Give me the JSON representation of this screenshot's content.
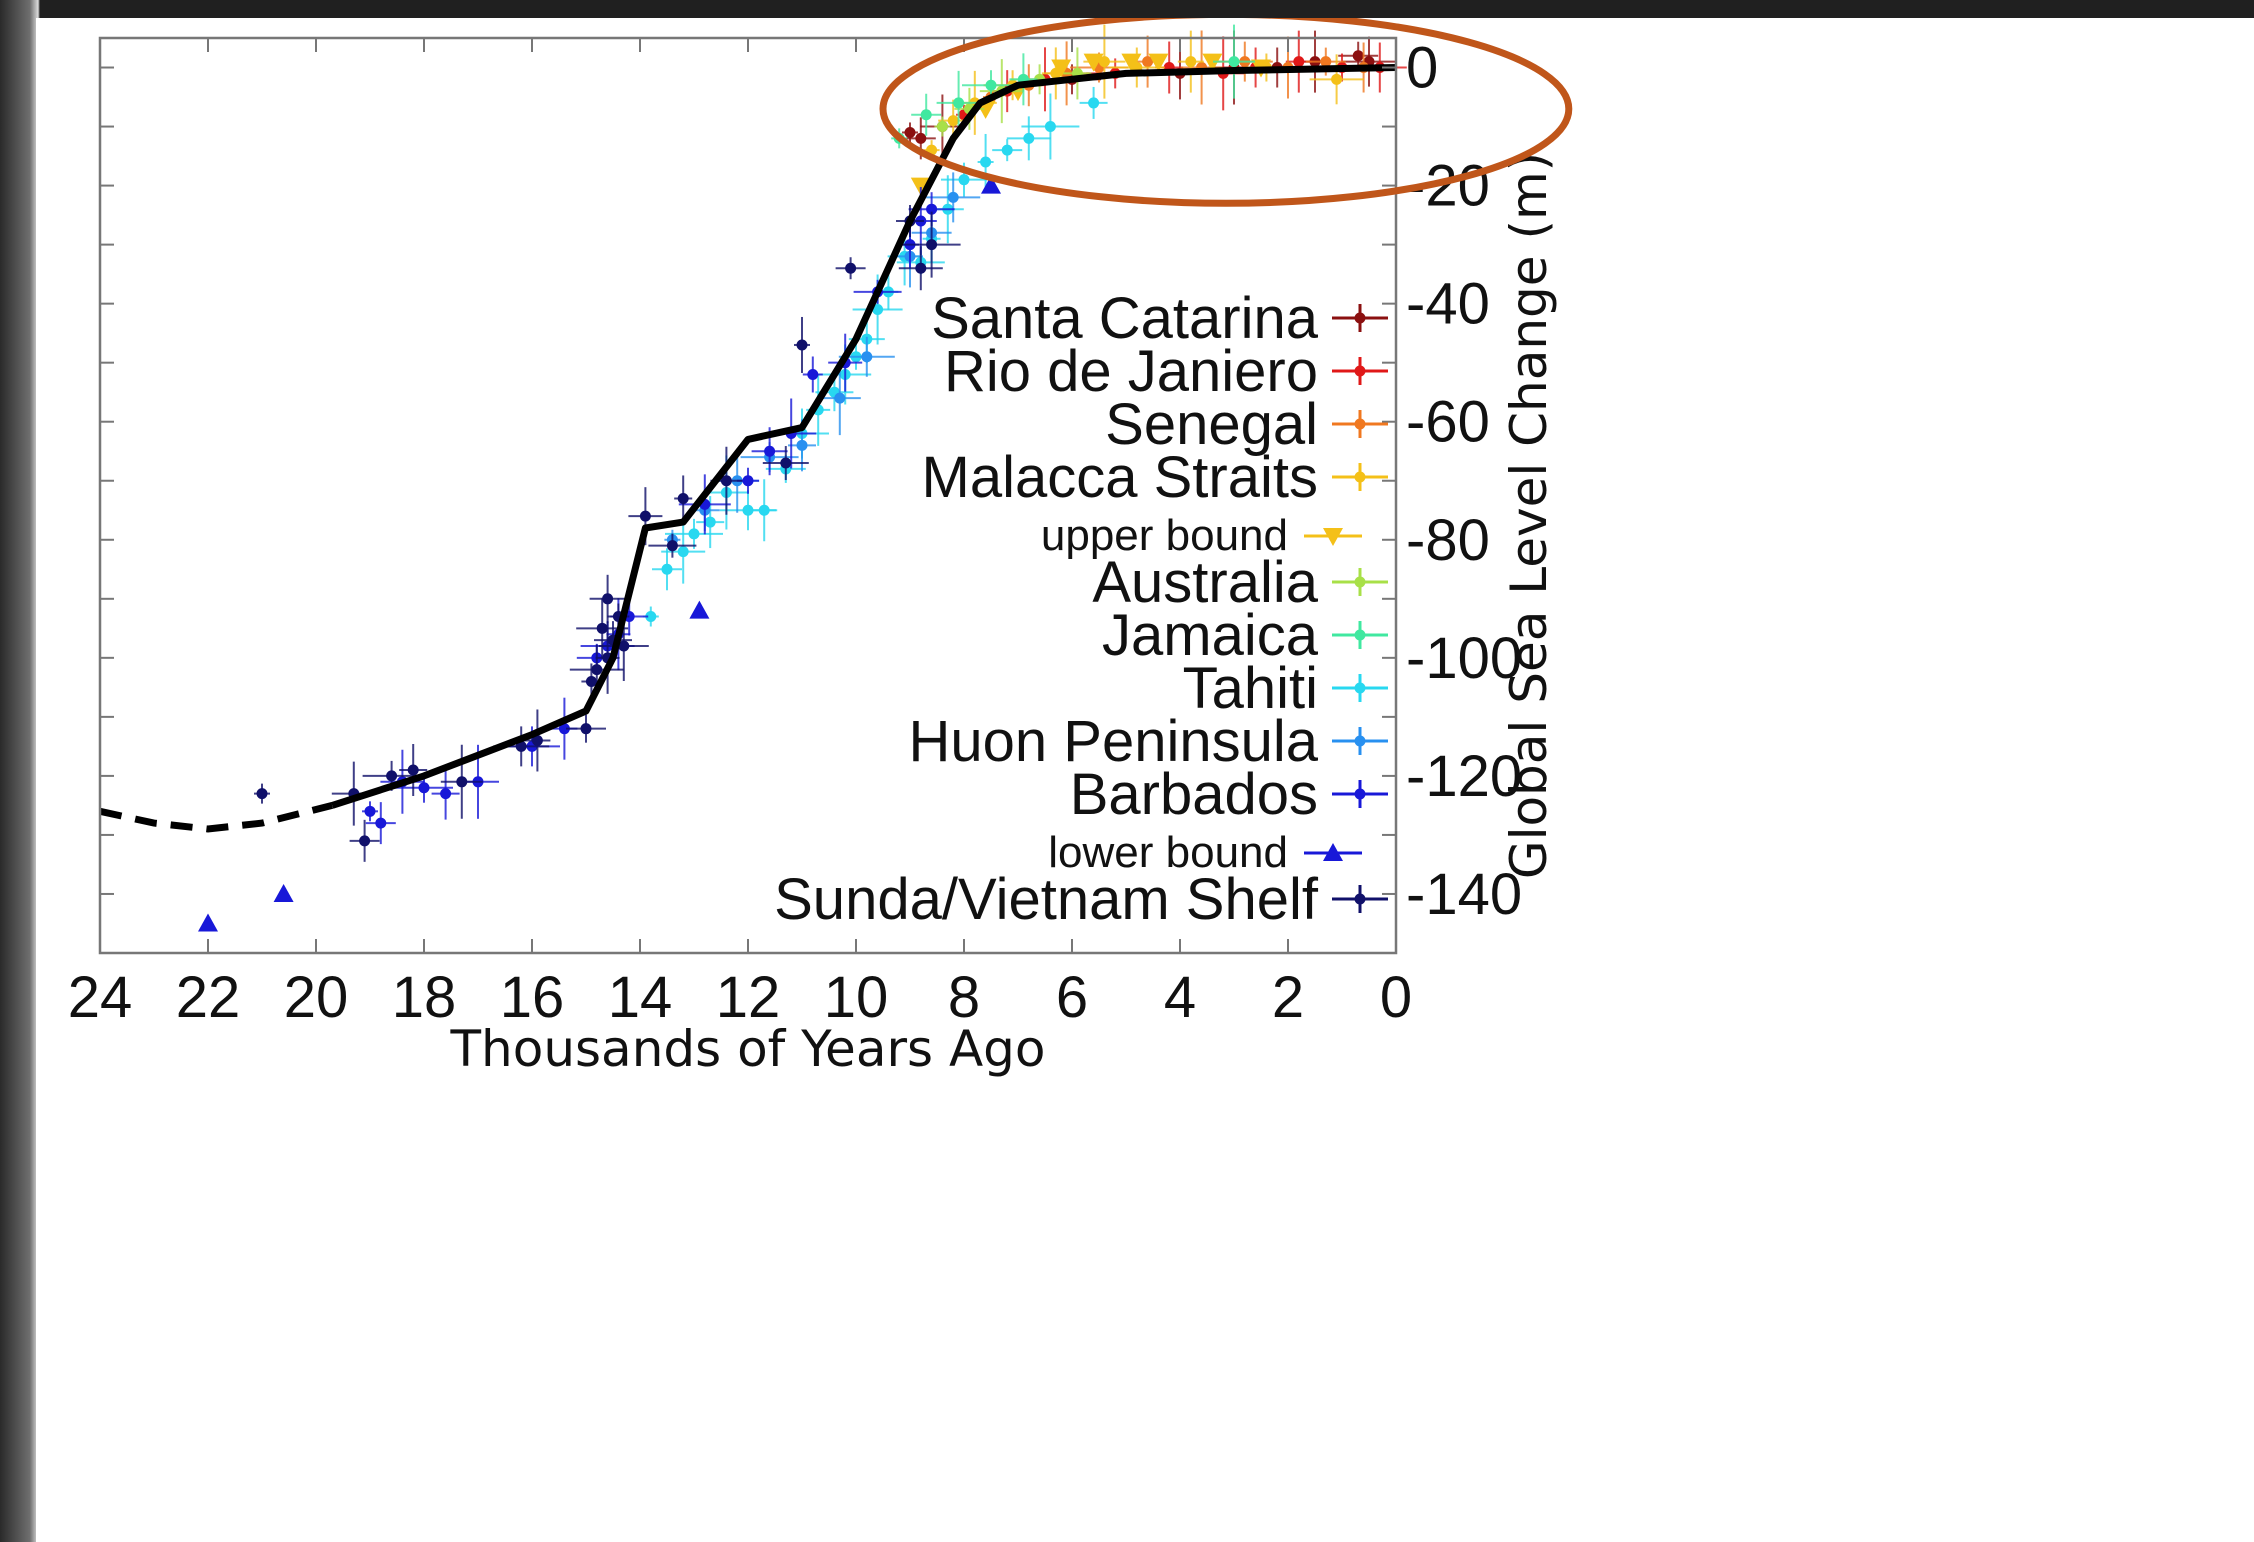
{
  "chart_data": {
    "type": "scatter",
    "title": "",
    "xlabel": "Thousands of Years Ago",
    "ylabel": "Global Sea Level Change (m)",
    "xlim": [
      24,
      0
    ],
    "ylim": [
      -150,
      5
    ],
    "x_ticks": [
      24,
      22,
      20,
      18,
      16,
      14,
      12,
      10,
      8,
      6,
      4,
      2,
      0
    ],
    "y_tick_labels": [
      0,
      -20,
      -40,
      -60,
      -80,
      -100,
      -120,
      -140
    ],
    "grid": false,
    "legend_position": "right-center",
    "highlight": {
      "type": "ellipse",
      "color": "#c0561a",
      "x_range": [
        9.5,
        -3.2
      ],
      "y_range": [
        -23,
        9
      ]
    },
    "legend": [
      {
        "label": "Santa Catarina",
        "color": "#8b1010",
        "marker": "circle-cross"
      },
      {
        "label": "Rio de Janiero",
        "color": "#e01818",
        "marker": "circle-cross"
      },
      {
        "label": "Senegal",
        "color": "#f07820",
        "marker": "circle-cross"
      },
      {
        "label": "Malacca Straits",
        "color": "#f4c018",
        "marker": "circle-cross"
      },
      {
        "label": "upper bound",
        "color": "#f4c018",
        "marker": "triangle-down",
        "small": true
      },
      {
        "label": "Australia",
        "color": "#a8e048",
        "marker": "circle-cross"
      },
      {
        "label": "Jamaica",
        "color": "#40e8a0",
        "marker": "circle-cross"
      },
      {
        "label": "Tahiti",
        "color": "#28d8f0",
        "marker": "circle-cross"
      },
      {
        "label": "Huon Peninsula",
        "color": "#2890f0",
        "marker": "circle-cross"
      },
      {
        "label": "Barbados",
        "color": "#1818d8",
        "marker": "circle-cross"
      },
      {
        "label": "lower bound",
        "color": "#1818d8",
        "marker": "triangle-up",
        "small": true
      },
      {
        "label": "Sunda/Vietnam Shelf",
        "color": "#10106a",
        "marker": "circle-cross"
      }
    ],
    "trend_line": {
      "color": "#000000",
      "dashed": [
        [
          24,
          -126
        ],
        [
          23,
          -128
        ],
        [
          22,
          -129
        ],
        [
          21,
          -128
        ],
        [
          19.7,
          -125
        ]
      ],
      "solid": [
        [
          19.7,
          -125
        ],
        [
          18,
          -120
        ],
        [
          16,
          -113
        ],
        [
          15,
          -109
        ],
        [
          14.5,
          -100
        ],
        [
          13.9,
          -78
        ],
        [
          13.2,
          -77
        ],
        [
          12,
          -63
        ],
        [
          11,
          -61
        ],
        [
          10,
          -46
        ],
        [
          9,
          -26
        ],
        [
          8.2,
          -12
        ],
        [
          7.7,
          -6
        ],
        [
          7,
          -3
        ],
        [
          5,
          -1
        ],
        [
          3,
          -0.5
        ],
        [
          0,
          0
        ]
      ]
    },
    "series": [
      {
        "name": "Santa Catarina",
        "points": [
          [
            9.0,
            -11
          ],
          [
            8.8,
            -12
          ],
          [
            8.4,
            -10
          ],
          [
            6.0,
            -2
          ],
          [
            4.0,
            -1
          ],
          [
            3.0,
            0
          ],
          [
            2.2,
            0
          ],
          [
            1.5,
            1
          ],
          [
            0.7,
            2
          ],
          [
            0.5,
            1
          ]
        ]
      },
      {
        "name": "Rio de Janiero",
        "points": [
          [
            8.0,
            -8
          ],
          [
            7.2,
            -4
          ],
          [
            6.5,
            -2
          ],
          [
            5.2,
            -1
          ],
          [
            4.2,
            0
          ],
          [
            3.2,
            -1
          ],
          [
            2.6,
            0
          ],
          [
            1.8,
            1
          ],
          [
            1.0,
            0
          ],
          [
            0.3,
            0
          ]
        ]
      },
      {
        "name": "Senegal",
        "points": [
          [
            7.5,
            -5
          ],
          [
            6.8,
            -3
          ],
          [
            6.1,
            -1
          ],
          [
            5.5,
            0
          ],
          [
            4.6,
            1
          ],
          [
            3.6,
            0
          ],
          [
            2.8,
            1
          ],
          [
            2.0,
            0
          ],
          [
            1.3,
            1
          ],
          [
            0.6,
            0
          ]
        ]
      },
      {
        "name": "Malacca Straits",
        "points": [
          [
            8.6,
            -14
          ],
          [
            8.2,
            -9
          ],
          [
            7.8,
            -6
          ],
          [
            7.1,
            -3
          ],
          [
            6.3,
            -1
          ],
          [
            5.4,
            1
          ],
          [
            4.8,
            0
          ],
          [
            3.8,
            1
          ],
          [
            2.4,
            0
          ],
          [
            1.1,
            -2
          ]
        ]
      },
      {
        "name": "upper bound",
        "points": [
          [
            8.8,
            -20
          ],
          [
            7.6,
            -7
          ],
          [
            7.0,
            -4
          ],
          [
            6.2,
            0
          ],
          [
            5.6,
            1
          ],
          [
            4.9,
            1
          ],
          [
            4.4,
            1
          ],
          [
            3.4,
            1
          ],
          [
            2.5,
            0
          ]
        ]
      },
      {
        "name": "Australia",
        "points": [
          [
            8.4,
            -10
          ],
          [
            7.9,
            -7
          ],
          [
            7.3,
            -4
          ],
          [
            6.6,
            -2
          ],
          [
            5.9,
            -1
          ]
        ]
      },
      {
        "name": "Jamaica",
        "points": [
          [
            9.2,
            -12
          ],
          [
            8.7,
            -8
          ],
          [
            8.1,
            -6
          ],
          [
            7.5,
            -3
          ],
          [
            6.9,
            -2
          ],
          [
            3.0,
            1
          ]
        ]
      },
      {
        "name": "Tahiti",
        "points": [
          [
            13.8,
            -93
          ],
          [
            13.5,
            -85
          ],
          [
            13.2,
            -82
          ],
          [
            13.0,
            -79
          ],
          [
            12.7,
            -77
          ],
          [
            12.4,
            -72
          ],
          [
            12.0,
            -75
          ],
          [
            11.7,
            -75
          ],
          [
            11.3,
            -68
          ],
          [
            11.0,
            -62
          ],
          [
            10.7,
            -58
          ],
          [
            10.4,
            -55
          ],
          [
            10.2,
            -52
          ],
          [
            10.0,
            -49
          ],
          [
            9.8,
            -46
          ],
          [
            9.6,
            -41
          ],
          [
            9.4,
            -38
          ],
          [
            9.1,
            -32
          ],
          [
            8.8,
            -33
          ],
          [
            8.6,
            -29
          ],
          [
            8.3,
            -24
          ],
          [
            8.0,
            -19
          ],
          [
            7.6,
            -16
          ],
          [
            7.2,
            -14
          ],
          [
            6.8,
            -12
          ],
          [
            6.4,
            -10
          ],
          [
            5.6,
            -6
          ]
        ]
      },
      {
        "name": "Huon Peninsula",
        "points": [
          [
            13.4,
            -80
          ],
          [
            12.8,
            -75
          ],
          [
            12.2,
            -70
          ],
          [
            11.6,
            -66
          ],
          [
            11.0,
            -64
          ],
          [
            10.3,
            -56
          ],
          [
            9.8,
            -49
          ],
          [
            9.0,
            -32
          ],
          [
            8.6,
            -28
          ],
          [
            8.2,
            -22
          ]
        ]
      },
      {
        "name": "Barbados",
        "points": [
          [
            19.0,
            -126
          ],
          [
            18.8,
            -128
          ],
          [
            18.4,
            -121
          ],
          [
            18.0,
            -122
          ],
          [
            17.6,
            -123
          ],
          [
            17.0,
            -121
          ],
          [
            16.0,
            -115
          ],
          [
            15.4,
            -112
          ],
          [
            14.8,
            -100
          ],
          [
            14.6,
            -98
          ],
          [
            14.4,
            -96
          ],
          [
            14.2,
            -93
          ],
          [
            12.8,
            -74
          ],
          [
            12.0,
            -70
          ],
          [
            11.6,
            -65
          ],
          [
            11.2,
            -62
          ],
          [
            10.8,
            -52
          ],
          [
            10.2,
            -50
          ],
          [
            9.6,
            -38
          ],
          [
            9.0,
            -30
          ],
          [
            8.8,
            -26
          ],
          [
            8.6,
            -24
          ]
        ]
      },
      {
        "name": "lower bound",
        "points": [
          [
            22.0,
            -145
          ],
          [
            20.6,
            -140
          ],
          [
            12.9,
            -92
          ],
          [
            7.5,
            -20
          ]
        ]
      },
      {
        "name": "Sunda/Vietnam Shelf",
        "points": [
          [
            21.0,
            -123
          ],
          [
            19.1,
            -131
          ],
          [
            19.3,
            -123
          ],
          [
            18.6,
            -120
          ],
          [
            18.2,
            -119
          ],
          [
            17.3,
            -121
          ],
          [
            16.2,
            -115
          ],
          [
            15.9,
            -114
          ],
          [
            15.0,
            -112
          ],
          [
            14.8,
            -102
          ],
          [
            14.6,
            -100
          ],
          [
            14.5,
            -97
          ],
          [
            14.7,
            -95
          ],
          [
            14.4,
            -93
          ],
          [
            14.6,
            -90
          ],
          [
            14.3,
            -98
          ],
          [
            14.9,
            -104
          ],
          [
            13.9,
            -76
          ],
          [
            13.4,
            -81
          ],
          [
            13.2,
            -73
          ],
          [
            12.4,
            -70
          ],
          [
            11.3,
            -67
          ],
          [
            11.0,
            -47
          ],
          [
            10.1,
            -34
          ],
          [
            8.8,
            -34
          ],
          [
            8.6,
            -30
          ],
          [
            9.0,
            -26
          ]
        ]
      }
    ]
  }
}
